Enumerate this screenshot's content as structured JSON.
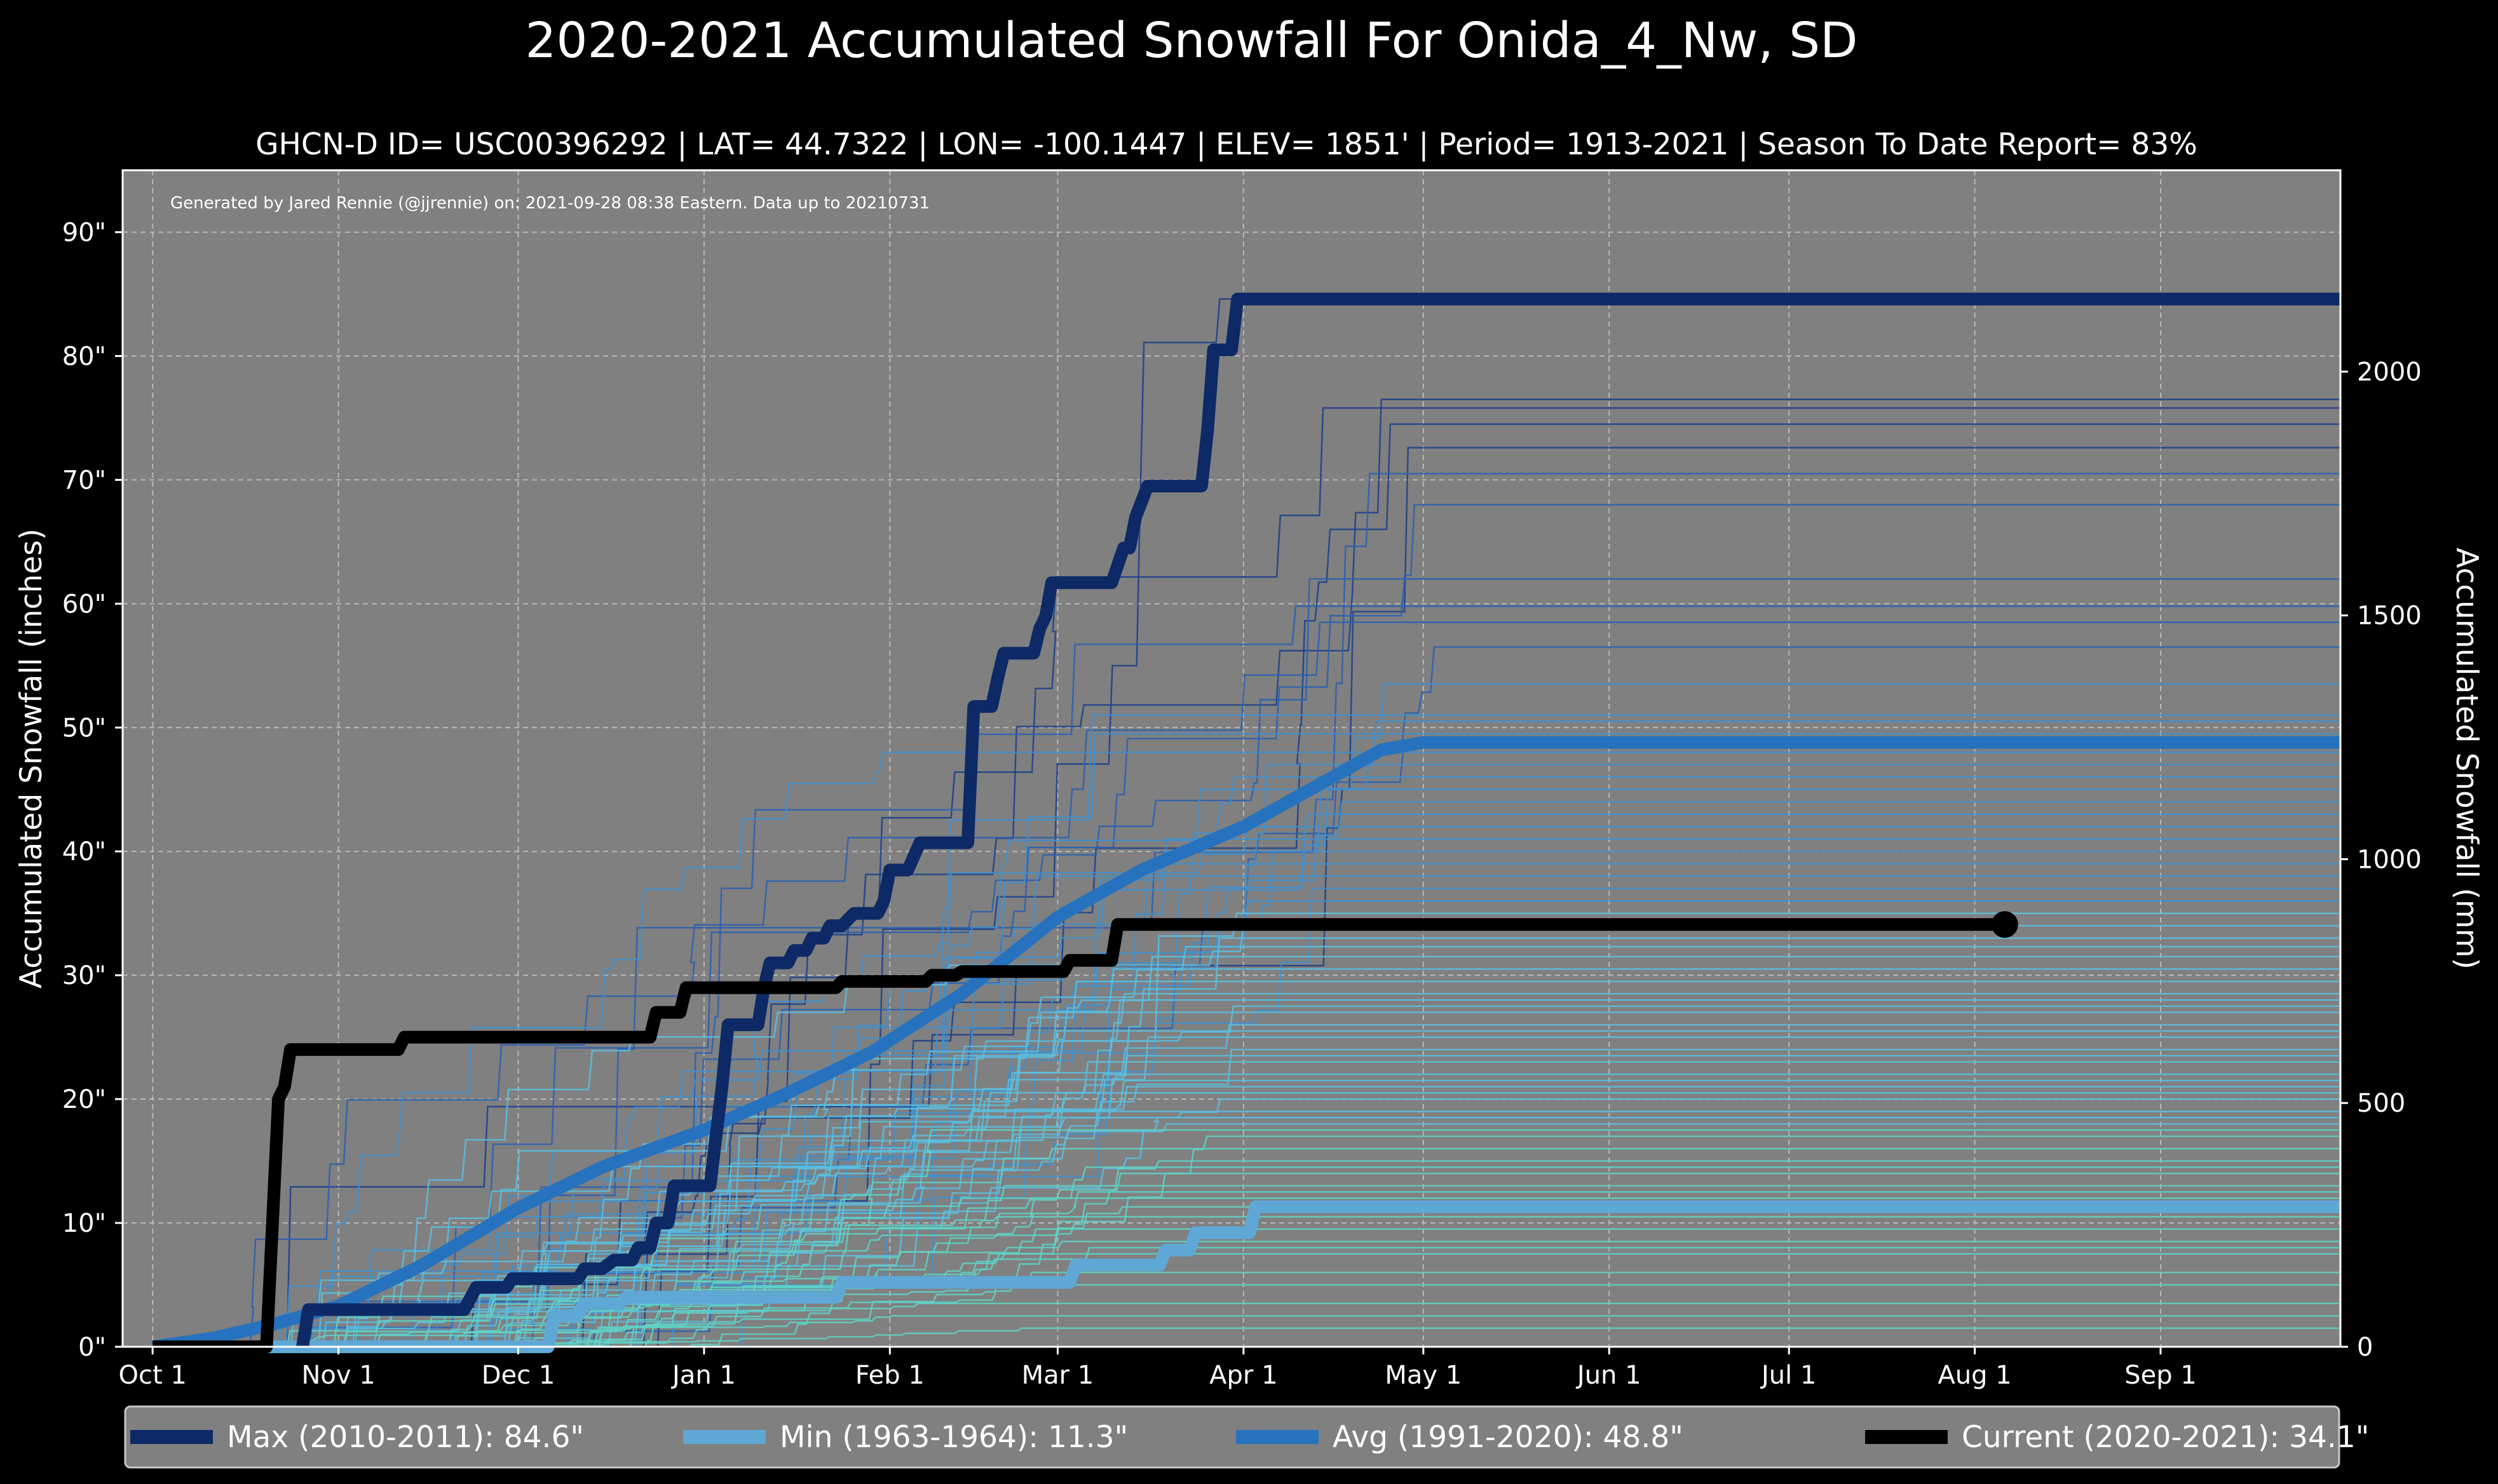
{
  "chart_data": {
    "type": "line",
    "title": "2020-2021 Accumulated Snowfall For Onida_4_Nw, SD",
    "subtitle": "GHCN-D ID= USC00396292 | LAT= 44.7322 | LON= -100.1447 | ELEV= 1851' | Period= 1913-2021 | Season To Date Report= 83%",
    "credit": "Generated by Jared Rennie (@jjrennie) on: 2021-09-28 08:38 Eastern. Data up to 20210731",
    "ylabel": "Accumulated Snowfall (inches)",
    "y2label": "Accumulated Snowfall (mm)",
    "xlim": [
      -5,
      365
    ],
    "ylim": [
      0,
      95
    ],
    "y2lim": [
      0,
      2413
    ],
    "grid": true,
    "x_ticks": [
      {
        "x": 0,
        "label": "Oct 1"
      },
      {
        "x": 31,
        "label": "Nov 1"
      },
      {
        "x": 61,
        "label": "Dec 1"
      },
      {
        "x": 92,
        "label": "Jan 1"
      },
      {
        "x": 123,
        "label": "Feb 1"
      },
      {
        "x": 151,
        "label": "Mar 1"
      },
      {
        "x": 182,
        "label": "Apr 1"
      },
      {
        "x": 212,
        "label": "May 1"
      },
      {
        "x": 243,
        "label": "Jun 1"
      },
      {
        "x": 273,
        "label": "Jul 1"
      },
      {
        "x": 304,
        "label": "Aug 1"
      },
      {
        "x": 335,
        "label": "Sep 1"
      }
    ],
    "y_ticks": [
      {
        "y": 0,
        "label": "0\""
      },
      {
        "y": 10,
        "label": "10\""
      },
      {
        "y": 20,
        "label": "20\""
      },
      {
        "y": 30,
        "label": "30\""
      },
      {
        "y": 40,
        "label": "40\""
      },
      {
        "y": 50,
        "label": "50\""
      },
      {
        "y": 60,
        "label": "60\""
      },
      {
        "y": 70,
        "label": "70\""
      },
      {
        "y": 80,
        "label": "80\""
      },
      {
        "y": 90,
        "label": "90\""
      }
    ],
    "y2_ticks": [
      {
        "y": 0,
        "label": "0"
      },
      {
        "y": 500,
        "label": "500"
      },
      {
        "y": 1000,
        "label": "1000"
      },
      {
        "y": 1500,
        "label": "1500"
      },
      {
        "y": 2000,
        "label": "2000"
      }
    ],
    "background_seasons": {
      "totals": [
        84.6,
        76.5,
        75.8,
        74.5,
        72.6,
        70.5,
        68.0,
        62.0,
        59.8,
        58.5,
        56.5,
        53.5,
        51.0,
        50.5,
        49.5,
        48.0,
        47.0,
        46.0,
        45.0,
        44.0,
        43.0,
        42.0,
        41.0,
        40.0,
        39.0,
        38.0,
        37.0,
        36.0,
        35.0,
        34.0,
        33.0,
        32.3,
        31.5,
        30.5,
        29.5,
        28.5,
        28.0,
        27.5,
        27.0,
        26.0,
        25.5,
        25.0,
        24.0,
        23.5,
        23.0,
        22.0,
        21.5,
        21.0,
        20.5,
        20.0,
        19.0,
        18.5,
        18.0,
        17.5,
        17.0,
        16.0,
        15.0,
        14.5,
        14.0,
        13.0,
        12.5,
        12.0,
        11.3,
        10.5,
        9.5,
        8.5,
        8.0,
        7.5,
        6.0,
        5.0,
        3.5,
        2.5,
        1.5
      ],
      "color_scale": [
        "#5fd3c7",
        "#5bbfe0",
        "#3f8fce",
        "#2a5fb0",
        "#1a3f8a"
      ]
    },
    "series": [
      {
        "name": "Max (2010-2011)",
        "color": "#0d2a66",
        "width": 20,
        "points": [
          [
            25,
            0
          ],
          [
            26,
            3
          ],
          [
            52,
            3
          ],
          [
            54,
            4.8
          ],
          [
            59,
            4.8
          ],
          [
            60,
            5.5
          ],
          [
            71,
            5.5
          ],
          [
            72,
            6.3
          ],
          [
            75,
            6.3
          ],
          [
            77,
            7
          ],
          [
            80,
            7
          ],
          [
            81,
            8
          ],
          [
            83,
            8
          ],
          [
            84,
            10
          ],
          [
            86,
            10
          ],
          [
            87,
            13
          ],
          [
            93,
            13
          ],
          [
            95,
            21
          ],
          [
            96,
            26
          ],
          [
            101,
            26
          ],
          [
            102,
            29
          ],
          [
            103,
            31
          ],
          [
            106,
            31
          ],
          [
            107,
            32
          ],
          [
            109,
            32
          ],
          [
            110,
            33
          ],
          [
            112,
            33
          ],
          [
            113,
            34
          ],
          [
            115,
            34
          ],
          [
            117,
            35
          ],
          [
            121,
            35
          ],
          [
            122,
            36
          ],
          [
            123,
            38.5
          ],
          [
            126,
            38.5
          ],
          [
            128,
            40.7
          ],
          [
            136,
            40.7
          ],
          [
            137,
            51.7
          ],
          [
            140,
            51.7
          ],
          [
            141,
            54
          ],
          [
            142,
            56
          ],
          [
            147,
            56
          ],
          [
            148,
            58
          ],
          [
            149,
            59
          ],
          [
            150,
            61.7
          ],
          [
            160,
            61.7
          ],
          [
            162,
            64.5
          ],
          [
            163,
            64.5
          ],
          [
            164,
            67
          ],
          [
            166,
            69.5
          ],
          [
            175,
            69.5
          ],
          [
            176,
            74
          ],
          [
            177,
            80.5
          ],
          [
            180,
            80.5
          ],
          [
            181,
            84.6
          ],
          [
            365,
            84.6
          ]
        ]
      },
      {
        "name": "Min (1963-1964)",
        "color": "#5fa8d6",
        "width": 20,
        "points": [
          [
            0,
            0
          ],
          [
            66,
            0
          ],
          [
            67,
            2.5
          ],
          [
            71,
            2.5
          ],
          [
            72,
            3.5
          ],
          [
            78,
            3.5
          ],
          [
            79,
            4
          ],
          [
            114,
            4
          ],
          [
            115,
            5.2
          ],
          [
            153,
            5.2
          ],
          [
            154,
            6.6
          ],
          [
            168,
            6.6
          ],
          [
            169,
            7.8
          ],
          [
            173,
            7.8
          ],
          [
            174,
            9.2
          ],
          [
            183,
            9.2
          ],
          [
            184,
            11.3
          ],
          [
            365,
            11.3
          ]
        ]
      },
      {
        "name": "Avg (1991-2020)",
        "color": "#2672be",
        "width": 20,
        "points": [
          [
            0,
            0
          ],
          [
            10,
            0.7
          ],
          [
            20,
            1.8
          ],
          [
            31,
            3.3
          ],
          [
            45,
            6.6
          ],
          [
            61,
            11.2
          ],
          [
            75,
            14.5
          ],
          [
            92,
            17.5
          ],
          [
            106,
            20.5
          ],
          [
            120,
            23.8
          ],
          [
            135,
            28.5
          ],
          [
            151,
            34.7
          ],
          [
            165,
            38.5
          ],
          [
            182,
            42
          ],
          [
            195,
            45.5
          ],
          [
            205,
            48.2
          ],
          [
            212,
            48.8
          ],
          [
            365,
            48.8
          ]
        ]
      },
      {
        "name": "Current (2020-2021)",
        "color": "#000000",
        "width": 20,
        "points": [
          [
            0,
            0
          ],
          [
            19,
            0
          ],
          [
            20,
            10
          ],
          [
            21,
            20
          ],
          [
            22,
            21
          ],
          [
            23,
            24
          ],
          [
            41,
            24
          ],
          [
            42,
            25
          ],
          [
            83,
            25
          ],
          [
            84,
            27
          ],
          [
            88,
            27
          ],
          [
            89,
            29
          ],
          [
            114,
            29
          ],
          [
            115,
            29.5
          ],
          [
            119,
            29.5
          ],
          [
            121,
            29.5
          ],
          [
            129,
            29.5
          ],
          [
            130,
            30
          ],
          [
            134,
            30
          ],
          [
            135,
            30.3
          ],
          [
            152,
            30.3
          ],
          [
            153,
            31.2
          ],
          [
            160,
            31.2
          ],
          [
            161,
            34.1
          ],
          [
            309,
            34.1
          ]
        ],
        "end_marker": true
      }
    ],
    "legend": {
      "placement": "bottom",
      "entries": [
        {
          "label": "Max (2010-2011):   84.6\"",
          "color": "#0d2a66"
        },
        {
          "label": "Min (1963-1964):   11.3\"",
          "color": "#5fa8d6"
        },
        {
          "label": "Avg (1991-2020):   48.8\"",
          "color": "#2672be"
        },
        {
          "label": "Current (2020-2021):   34.1\"",
          "color": "#000000"
        }
      ]
    }
  }
}
